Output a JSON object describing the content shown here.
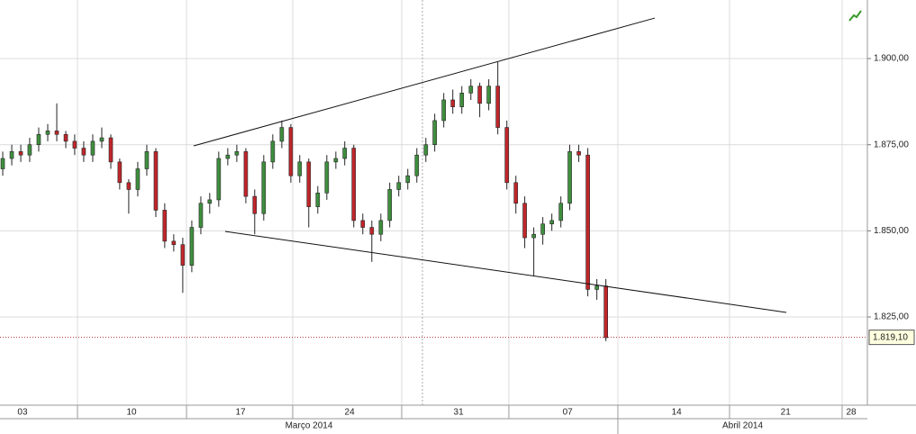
{
  "chart_data": {
    "type": "candlestick",
    "xlim": [
      1.555,
      57.25
    ],
    "xticks": [
      {
        "value": 3,
        "label": "03"
      },
      10,
      17,
      24,
      31,
      {
        "value": 38,
        "label": "07"
      },
      {
        "value": 45,
        "label": "14"
      },
      {
        "value": 52,
        "label": "21"
      },
      {
        "value": 59,
        "label": "28"
      }
    ],
    "xgrid": [
      6.53,
      13.53,
      20.35,
      27.35,
      34.23,
      41.23,
      48.4,
      55.63
    ],
    "marker_x": 28.68,
    "months": [
      "Março 2014",
      "Abril 2014"
    ],
    "month_break": 41.23,
    "ylim": [
      1799.4,
      1917
    ],
    "yticks": [
      {
        "value": 1825,
        "label": "1.825,00"
      },
      {
        "value": 1850,
        "label": "1.850,00"
      },
      {
        "value": 1875,
        "label": "1.875,00"
      },
      {
        "value": 1900,
        "label": "1.900,00"
      }
    ],
    "grid": true,
    "up_color": "#3f8f3f",
    "down_color": "#c0262b",
    "x": [
      1.73,
      2.31,
      2.89,
      3.46,
      4.04,
      4.62,
      5.2,
      5.78,
      6.35,
      6.93,
      7.51,
      8.09,
      8.67,
      9.24,
      9.82,
      10.4,
      10.98,
      11.56,
      12.13,
      12.71,
      13.29,
      13.87,
      14.45,
      15.02,
      15.6,
      16.18,
      16.76,
      17.34,
      17.91,
      18.49,
      19.07,
      19.65,
      20.23,
      20.8,
      21.38,
      21.96,
      22.54,
      23.12,
      23.69,
      24.27,
      24.85,
      25.43,
      26.01,
      26.58,
      27.16,
      27.74,
      28.32,
      28.9,
      29.47,
      30.05,
      30.63,
      31.21,
      31.79,
      32.36,
      32.94,
      33.52,
      34.1,
      34.68,
      35.25,
      35.83,
      36.41,
      36.99,
      37.57,
      38.14,
      38.72,
      39.3,
      39.88,
      40.46
    ],
    "open": [
      1868,
      1871,
      1873,
      1872,
      1875,
      1878,
      1879,
      1878,
      1876,
      1874,
      1872,
      1876,
      1877,
      1870,
      1864,
      1862,
      1868,
      1873,
      1856,
      1847,
      1846,
      1840,
      1851,
      1858,
      1859,
      1871,
      1872,
      1873,
      1860,
      1855,
      1870,
      1876,
      1880,
      1866,
      1870,
      1857,
      1861,
      1870,
      1871,
      1874,
      1853,
      1851,
      1849,
      1853,
      1862,
      1864,
      1866,
      1872,
      1875,
      1882,
      1888,
      1886,
      1890,
      1892,
      1887,
      1892,
      1880,
      1864,
      1858,
      1848,
      1849,
      1852,
      1853,
      1858,
      1873,
      1872,
      1833,
      1834
    ],
    "high": [
      1873,
      1875,
      1875,
      1877,
      1880,
      1881,
      1887,
      1879,
      1878,
      1876,
      1878,
      1880,
      1878,
      1871,
      1865,
      1870,
      1875,
      1874,
      1858,
      1849,
      1848,
      1853,
      1860,
      1861,
      1873,
      1874,
      1875,
      1874,
      1862,
      1872,
      1878,
      1882,
      1881,
      1872,
      1871,
      1863,
      1872,
      1873,
      1876,
      1875,
      1855,
      1853,
      1855,
      1864,
      1866,
      1868,
      1874,
      1877,
      1884,
      1890,
      1891,
      1892,
      1894,
      1893,
      1894,
      1899,
      1882,
      1866,
      1860,
      1851,
      1854,
      1855,
      1860,
      1875,
      1875,
      1874,
      1836,
      1836
    ],
    "low": [
      1866,
      1869,
      1870,
      1870,
      1873,
      1876,
      1876,
      1874,
      1872,
      1870,
      1870,
      1874,
      1868,
      1862,
      1855,
      1860,
      1866,
      1854,
      1845,
      1844,
      1832,
      1838,
      1849,
      1855,
      1857,
      1869,
      1870,
      1858,
      1849,
      1853,
      1868,
      1874,
      1864,
      1864,
      1851,
      1855,
      1859,
      1868,
      1869,
      1851,
      1849,
      1841,
      1847,
      1851,
      1860,
      1862,
      1864,
      1870,
      1873,
      1880,
      1884,
      1884,
      1888,
      1883,
      1885,
      1878,
      1862,
      1855,
      1845,
      1837,
      1846,
      1850,
      1851,
      1856,
      1870,
      1831,
      1830,
      1818
    ],
    "close": [
      1871,
      1873,
      1872,
      1875,
      1878,
      1879,
      1878,
      1876,
      1874,
      1872,
      1876,
      1877,
      1870,
      1864,
      1862,
      1868,
      1873,
      1856,
      1847,
      1846,
      1840,
      1851,
      1858,
      1859,
      1871,
      1872,
      1873,
      1860,
      1855,
      1870,
      1876,
      1880,
      1866,
      1870,
      1857,
      1861,
      1870,
      1871,
      1874,
      1853,
      1851,
      1849,
      1853,
      1862,
      1864,
      1866,
      1872,
      1875,
      1882,
      1888,
      1886,
      1890,
      1892,
      1887,
      1892,
      1880,
      1864,
      1858,
      1848,
      1849,
      1852,
      1853,
      1858,
      1873,
      1872,
      1833,
      1834,
      1819
    ],
    "trendlines": [
      {
        "x": [
          13.99,
          43.6
        ],
        "y": [
          1874.66,
          1911.76
        ]
      },
      {
        "x": [
          16.01,
          52.05
        ],
        "y": [
          1849.84,
          1826.33
        ]
      }
    ],
    "last_price": {
      "value": 1819.1,
      "label": "1.819,10"
    }
  }
}
